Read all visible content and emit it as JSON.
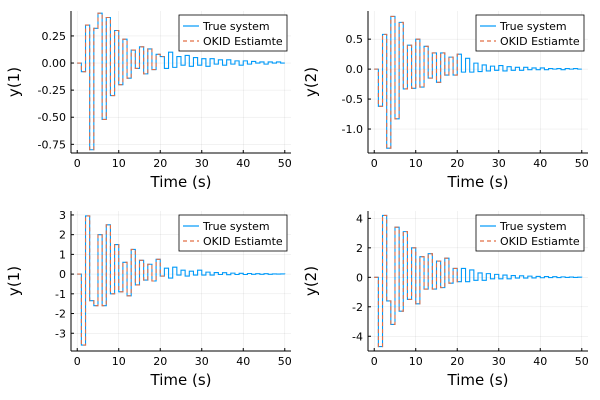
{
  "chart_data": [
    {
      "type": "line",
      "ylabel": "y(1)",
      "xlabel": "Time (s)",
      "xlim": [
        -1.5,
        51.5
      ],
      "ylim": [
        -0.83,
        0.48
      ],
      "xticks": [
        0,
        10,
        20,
        30,
        40,
        50
      ],
      "yticks": [
        0.25,
        0.0,
        -0.25,
        -0.5,
        -0.75
      ],
      "ytick_labels": [
        "0.25",
        "0.00",
        "-0.25",
        "-0.50",
        "-0.75"
      ],
      "legend": {
        "position": "top-right",
        "entries": [
          "True system",
          "OKID Estiamte"
        ]
      },
      "colors": {
        "true": "#009af9",
        "est": "#e26f46"
      },
      "series": [
        {
          "name": "True system",
          "style": "step",
          "x": [
            0,
            1,
            2,
            3,
            4,
            5,
            6,
            7,
            8,
            9,
            10,
            11,
            12,
            13,
            14,
            15,
            16,
            17,
            18,
            19,
            20,
            21,
            22,
            23,
            24,
            25,
            26,
            27,
            28,
            29,
            30,
            31,
            32,
            33,
            34,
            35,
            36,
            37,
            38,
            39,
            40,
            41,
            42,
            43,
            44,
            45,
            46,
            47,
            48,
            49,
            50
          ],
          "values": [
            0.0,
            -0.08,
            0.35,
            -0.8,
            0.32,
            0.46,
            -0.52,
            0.42,
            -0.3,
            0.3,
            -0.2,
            0.22,
            -0.14,
            0.12,
            -0.05,
            0.15,
            -0.1,
            0.13,
            -0.06,
            0.08,
            0.06,
            -0.05,
            0.1,
            -0.04,
            0.06,
            -0.02,
            0.07,
            -0.03,
            0.05,
            -0.02,
            0.04,
            -0.03,
            0.04,
            -0.01,
            0.03,
            -0.02,
            0.03,
            -0.01,
            0.02,
            -0.02,
            0.02,
            -0.01,
            0.015,
            0.0,
            0.01,
            -0.01,
            0.01,
            0.0,
            0.01,
            0.0,
            0.0
          ]
        },
        {
          "name": "OKID Estiamte",
          "style": "step-dash",
          "x": [
            0,
            1,
            2,
            3,
            4,
            5,
            6,
            7,
            8,
            9,
            10,
            11,
            12,
            13,
            14,
            15,
            16,
            17,
            18,
            19,
            20,
            21
          ],
          "values": [
            0.0,
            -0.08,
            0.35,
            -0.8,
            0.32,
            0.46,
            -0.52,
            0.42,
            -0.3,
            0.3,
            -0.2,
            0.22,
            -0.14,
            0.12,
            -0.05,
            0.15,
            -0.1,
            0.13,
            -0.06,
            0.08,
            0.06,
            0.06
          ]
        }
      ]
    },
    {
      "type": "line",
      "ylabel": "y(2)",
      "xlabel": "Time (s)",
      "xlim": [
        -1.5,
        51.5
      ],
      "ylim": [
        -1.4,
        0.97
      ],
      "xticks": [
        0,
        10,
        20,
        30,
        40,
        50
      ],
      "yticks": [
        0.5,
        0.0,
        -0.5,
        -1.0
      ],
      "ytick_labels": [
        "0.5",
        "0.0",
        "-0.5",
        "-1.0"
      ],
      "legend": {
        "position": "top-right",
        "entries": [
          "True system",
          "OKID Estiamte"
        ]
      },
      "colors": {
        "true": "#009af9",
        "est": "#e26f46"
      },
      "series": [
        {
          "name": "True system",
          "style": "step",
          "x": [
            0,
            1,
            2,
            3,
            4,
            5,
            6,
            7,
            8,
            9,
            10,
            11,
            12,
            13,
            14,
            15,
            16,
            17,
            18,
            19,
            20,
            21,
            22,
            23,
            24,
            25,
            26,
            27,
            28,
            29,
            30,
            31,
            32,
            33,
            34,
            35,
            36,
            37,
            38,
            39,
            40,
            41,
            42,
            43,
            44,
            45,
            46,
            47,
            48,
            49,
            50
          ],
          "values": [
            0.0,
            -0.62,
            0.58,
            -1.32,
            0.88,
            -0.83,
            0.78,
            -0.33,
            0.4,
            -0.32,
            0.5,
            -0.3,
            0.38,
            -0.15,
            0.27,
            -0.22,
            0.27,
            -0.1,
            0.2,
            -0.1,
            0.25,
            -0.05,
            0.18,
            -0.05,
            0.1,
            -0.04,
            0.07,
            -0.03,
            0.05,
            -0.02,
            0.06,
            -0.03,
            0.04,
            -0.02,
            0.03,
            -0.02,
            0.03,
            -0.01,
            0.02,
            -0.01,
            0.02,
            -0.01,
            0.01,
            0.0,
            0.01,
            -0.01,
            0.01,
            0.0,
            0.01,
            0.0,
            0.0
          ]
        },
        {
          "name": "OKID Estiamte",
          "style": "step-dash",
          "x": [
            0,
            1,
            2,
            3,
            4,
            5,
            6,
            7,
            8,
            9,
            10,
            11,
            12,
            13,
            14,
            15,
            16,
            17,
            18,
            19,
            20,
            21
          ],
          "values": [
            0.0,
            -0.62,
            0.58,
            -1.32,
            0.88,
            -0.83,
            0.78,
            -0.33,
            0.4,
            -0.32,
            0.5,
            -0.3,
            0.38,
            -0.15,
            0.27,
            -0.22,
            0.27,
            -0.1,
            0.2,
            -0.1,
            0.25,
            0.25
          ]
        }
      ]
    },
    {
      "type": "line",
      "ylabel": "y(1)",
      "xlabel": "Time (s)",
      "xlim": [
        -1.5,
        51.5
      ],
      "ylim": [
        -3.9,
        3.2
      ],
      "xticks": [
        0,
        10,
        20,
        30,
        40,
        50
      ],
      "yticks": [
        3,
        2,
        1,
        0,
        -1,
        -2,
        -3
      ],
      "ytick_labels": [
        "3",
        "2",
        "1",
        "0",
        "-1",
        "-2",
        "-3"
      ],
      "legend": {
        "position": "top-right",
        "entries": [
          "True system",
          "OKID Estiamte"
        ]
      },
      "colors": {
        "true": "#009af9",
        "est": "#e26f46"
      },
      "series": [
        {
          "name": "True system",
          "style": "step",
          "x": [
            0,
            1,
            2,
            3,
            4,
            5,
            6,
            7,
            8,
            9,
            10,
            11,
            12,
            13,
            14,
            15,
            16,
            17,
            18,
            19,
            20,
            21,
            22,
            23,
            24,
            25,
            26,
            27,
            28,
            29,
            30,
            31,
            32,
            33,
            34,
            35,
            36,
            37,
            38,
            39,
            40,
            41,
            42,
            43,
            44,
            45,
            46,
            47,
            48,
            49,
            50
          ],
          "values": [
            0.0,
            -3.6,
            2.95,
            -1.35,
            -1.6,
            2.0,
            -1.6,
            2.5,
            -1.0,
            1.5,
            -0.9,
            0.6,
            -1.1,
            1.25,
            -0.55,
            0.7,
            -0.3,
            0.5,
            -0.35,
            0.75,
            -0.1,
            0.3,
            -0.2,
            0.35,
            -0.05,
            0.2,
            -0.1,
            0.15,
            -0.05,
            0.2,
            -0.05,
            0.1,
            -0.05,
            0.08,
            -0.02,
            0.07,
            -0.03,
            0.05,
            -0.02,
            0.04,
            -0.02,
            0.03,
            -0.01,
            0.02,
            -0.01,
            0.02,
            -0.01,
            0.01,
            0.0,
            0.01,
            0.0
          ]
        },
        {
          "name": "OKID Estiamte",
          "style": "step-dash",
          "x": [
            0,
            1,
            2,
            3,
            4,
            5,
            6,
            7,
            8,
            9,
            10,
            11,
            12,
            13,
            14,
            15,
            16,
            17,
            18,
            19,
            20,
            21
          ],
          "values": [
            0.0,
            -3.6,
            2.95,
            -1.35,
            -1.6,
            2.0,
            -1.6,
            2.5,
            -1.0,
            1.5,
            -0.9,
            0.6,
            -1.1,
            1.25,
            -0.55,
            0.7,
            -0.3,
            0.5,
            -0.35,
            0.75,
            -0.1,
            -0.1
          ]
        }
      ]
    },
    {
      "type": "line",
      "ylabel": "y(2)",
      "xlabel": "Time (s)",
      "xlim": [
        -1.5,
        51.5
      ],
      "ylim": [
        -5.0,
        4.5
      ],
      "xticks": [
        0,
        10,
        20,
        30,
        40,
        50
      ],
      "yticks": [
        4,
        2,
        0,
        -2,
        -4
      ],
      "ytick_labels": [
        "4",
        "2",
        "0",
        "-2",
        "-4"
      ],
      "legend": {
        "position": "top-right",
        "entries": [
          "True system",
          "OKID Estiamte"
        ]
      },
      "colors": {
        "true": "#009af9",
        "est": "#e26f46"
      },
      "series": [
        {
          "name": "True system",
          "style": "step",
          "x": [
            0,
            1,
            2,
            3,
            4,
            5,
            6,
            7,
            8,
            9,
            10,
            11,
            12,
            13,
            14,
            15,
            16,
            17,
            18,
            19,
            20,
            21,
            22,
            23,
            24,
            25,
            26,
            27,
            28,
            29,
            30,
            31,
            32,
            33,
            34,
            35,
            36,
            37,
            38,
            39,
            40,
            41,
            42,
            43,
            44,
            45,
            46,
            47,
            48,
            49,
            50
          ],
          "values": [
            0.0,
            -4.7,
            4.2,
            -1.6,
            -3.2,
            3.4,
            -2.3,
            3.1,
            -1.5,
            2.0,
            -1.8,
            1.4,
            -0.8,
            1.6,
            -0.8,
            1.1,
            -0.7,
            1.3,
            -0.4,
            0.6,
            -0.3,
            0.6,
            -0.3,
            0.5,
            -0.2,
            0.3,
            -0.2,
            0.25,
            -0.1,
            0.2,
            -0.1,
            0.15,
            -0.1,
            0.12,
            -0.05,
            0.1,
            -0.05,
            0.08,
            -0.04,
            0.06,
            -0.03,
            0.05,
            -0.02,
            0.04,
            -0.02,
            0.03,
            -0.01,
            0.02,
            -0.01,
            0.01,
            0.0
          ]
        },
        {
          "name": "OKID Estiamte",
          "style": "step-dash",
          "x": [
            0,
            1,
            2,
            3,
            4,
            5,
            6,
            7,
            8,
            9,
            10,
            11,
            12,
            13,
            14,
            15,
            16,
            17,
            18,
            19,
            20,
            21
          ],
          "values": [
            0.0,
            -4.7,
            4.2,
            -1.6,
            -3.2,
            3.4,
            -2.3,
            3.1,
            -1.5,
            2.0,
            -1.8,
            1.4,
            -0.8,
            1.6,
            -0.8,
            1.1,
            -0.7,
            1.3,
            -0.4,
            0.6,
            -0.3,
            -0.3
          ]
        }
      ]
    }
  ]
}
